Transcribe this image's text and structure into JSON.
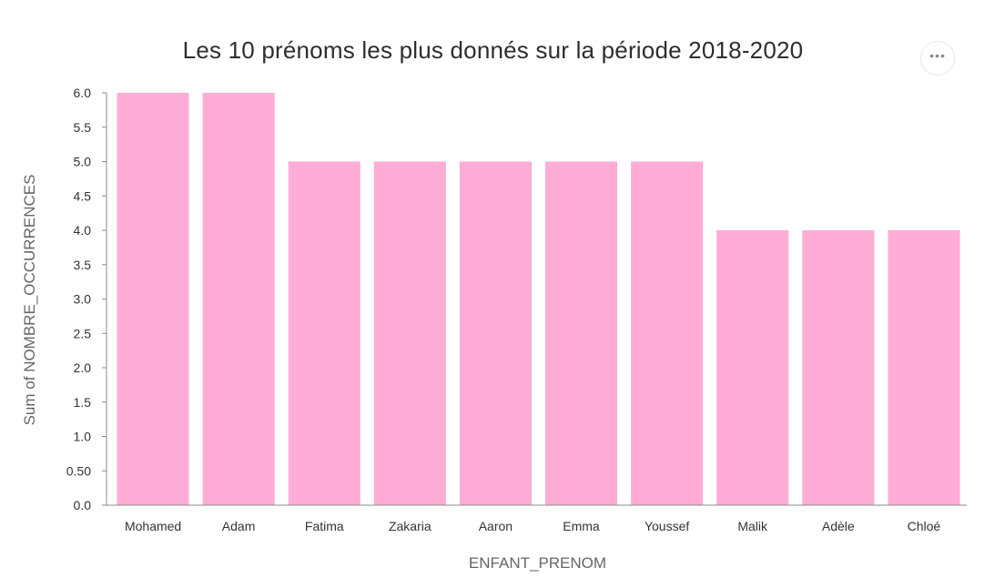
{
  "menu": {
    "icon": "more-horizontal-icon",
    "label": "•••"
  },
  "colors": {
    "bar": "#ffacd6",
    "axis": "#8c8c8c",
    "text": "#333333"
  },
  "chart_data": {
    "type": "bar",
    "title": "Les 10 prénoms les plus donnés sur la période 2018-2020",
    "xlabel": "ENFANT_PRENOM",
    "ylabel": "Sum of NOMBRE_OCCURRENCES",
    "categories": [
      "Mohamed",
      "Adam",
      "Fatima",
      "Zakaria",
      "Aaron",
      "Emma",
      "Youssef",
      "Malik",
      "Adèle",
      "Chloé"
    ],
    "values": [
      6,
      6,
      5,
      5,
      5,
      5,
      5,
      4,
      4,
      4
    ],
    "ylim": [
      0,
      6
    ],
    "yticks": [
      "0.0",
      "0.50",
      "1.0",
      "1.5",
      "2.0",
      "2.5",
      "3.0",
      "3.5",
      "4.0",
      "4.5",
      "5.0",
      "5.5",
      "6.0"
    ],
    "grid": false,
    "legend": "none"
  }
}
